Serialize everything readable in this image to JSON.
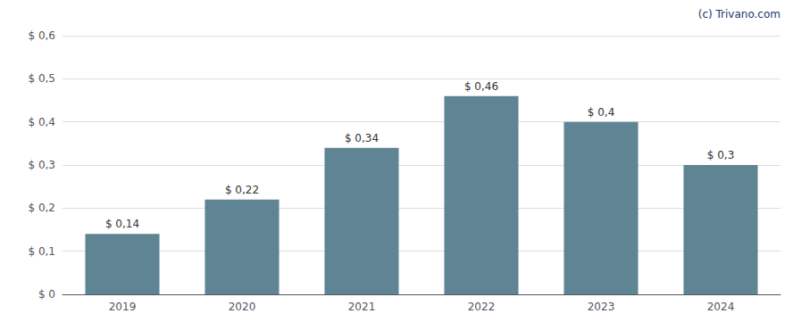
{
  "chart_data": {
    "type": "bar",
    "categories": [
      "2019",
      "2020",
      "2021",
      "2022",
      "2023",
      "2024"
    ],
    "values": [
      0.14,
      0.22,
      0.34,
      0.46,
      0.4,
      0.3
    ],
    "value_labels": [
      "$ 0,14",
      "$ 0,22",
      "$ 0,34",
      "$ 0,46",
      "$ 0,4",
      "$ 0,3"
    ],
    "data_labels": true,
    "color": "#5f8494",
    "ylim": [
      0,
      0.6
    ],
    "yticks": [
      {
        "value": 0,
        "label": "$ 0"
      },
      {
        "value": 0.1,
        "label": "$ 0,1"
      },
      {
        "value": 0.2,
        "label": "$ 0,2"
      },
      {
        "value": 0.3,
        "label": "$ 0,3"
      },
      {
        "value": 0.4,
        "label": "$ 0,4"
      },
      {
        "value": 0.5,
        "label": "$ 0,5"
      },
      {
        "value": 0.6,
        "label": "$ 0,6"
      }
    ],
    "grid": true,
    "annotations": [
      "(c) Trivano.com"
    ]
  }
}
